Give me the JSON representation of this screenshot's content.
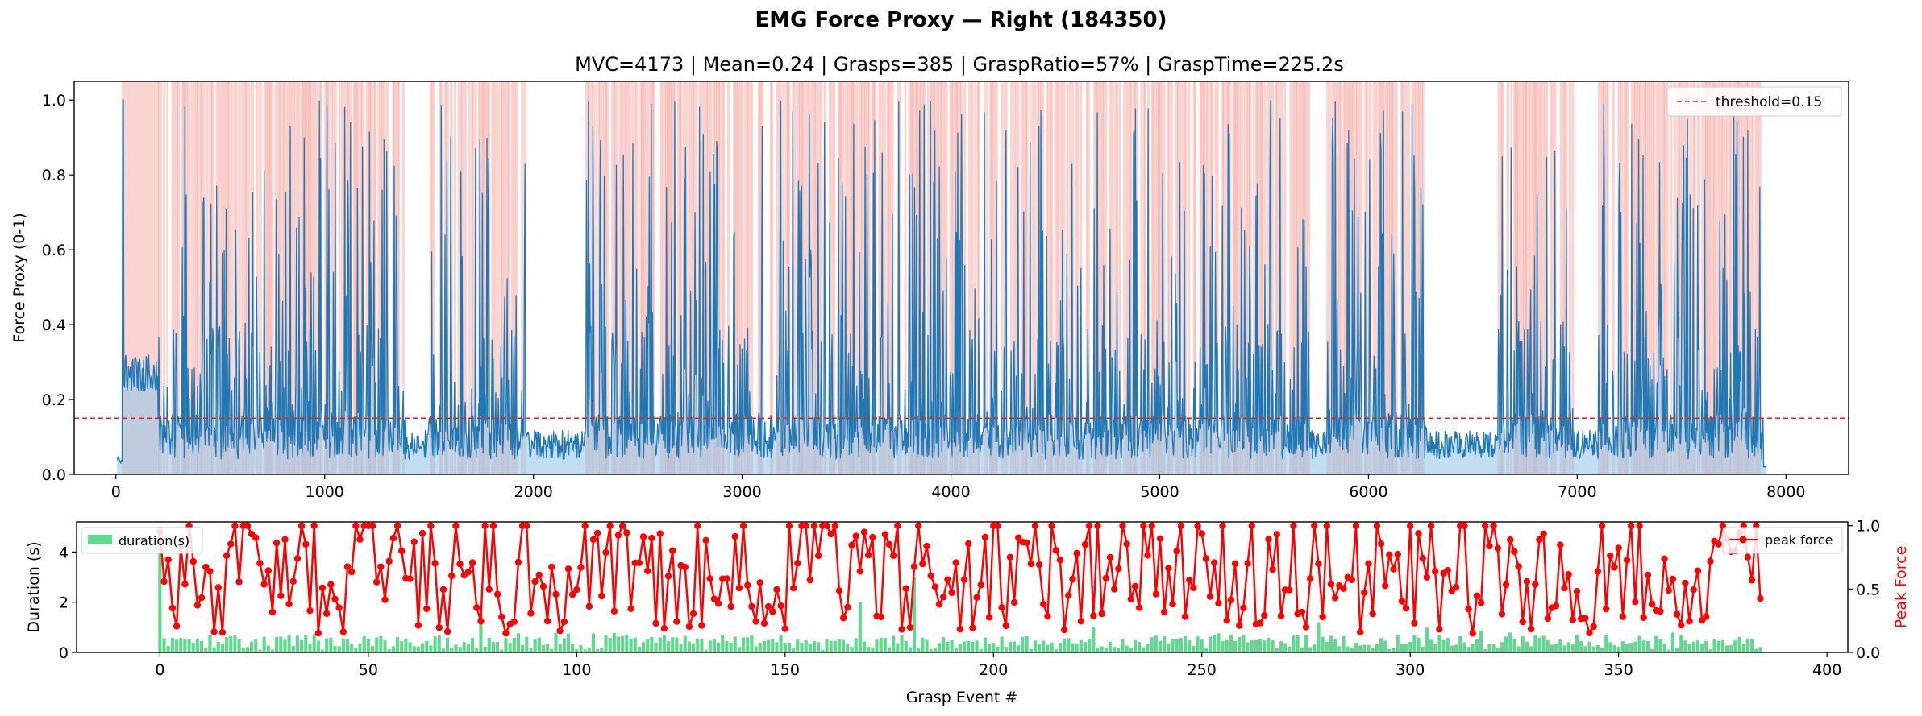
{
  "figure": {
    "suptitle": "EMG Force Proxy — Right (184350)"
  },
  "chart_data": [
    {
      "type": "line",
      "title": "MVC=4173 | Mean=0.24 | Grasps=385 | GraspRatio=57% | GraspTime=225.2s",
      "xlabel": "",
      "ylabel": "Force Proxy (0-1)",
      "xlim": [
        -200,
        8300
      ],
      "ylim": [
        0,
        1.05
      ],
      "xticks": [
        0,
        1000,
        2000,
        3000,
        4000,
        5000,
        6000,
        7000,
        8000
      ],
      "xtick_labels": [
        "0",
        "1000",
        "2000",
        "3000",
        "4000",
        "5000",
        "6000",
        "7000",
        "8000"
      ],
      "yticks": [
        0.0,
        0.2,
        0.4,
        0.6,
        0.8,
        1.0
      ],
      "ytick_labels": [
        "0.0",
        "0.2",
        "0.4",
        "0.6",
        "0.8",
        "1.0"
      ],
      "x_range_signal": [
        0,
        7900
      ],
      "series": [
        {
          "name": "",
          "color": "#1f77b4",
          "description": "force proxy signal, filled light blue to zero",
          "values_summary": "noisy bursts with frequent peaks 0.4–1.0; baseline 0.03–0.15; quiet segments near 1400–1500, 2000–2250, 5750, 6300–6600, 7000–7100"
        }
      ],
      "threshold": {
        "label": "threshold=0.15",
        "value": 0.15,
        "color": "#d62728",
        "style": "dashed"
      },
      "grasp_shading": {
        "color": "#f4a09a",
        "description": "vertical red shaded spans where force exceeds threshold"
      },
      "legend": {
        "placement": "upper right",
        "entries": [
          "threshold=0.15"
        ]
      }
    },
    {
      "type": "bar",
      "title": "",
      "xlabel": "Grasp Event #",
      "ylabel": "Duration (s)",
      "ylabel_right": "Peak Force",
      "xlim": [
        -20,
        405
      ],
      "ylim": [
        0,
        5.2
      ],
      "ylim_right": [
        0,
        1.03
      ],
      "xticks": [
        0,
        50,
        100,
        150,
        200,
        250,
        300,
        350,
        400
      ],
      "xtick_labels": [
        "0",
        "50",
        "100",
        "150",
        "200",
        "250",
        "300",
        "350",
        "400"
      ],
      "yticks": [
        0,
        2,
        4
      ],
      "ytick_labels": [
        "0",
        "2",
        "4"
      ],
      "yticks_right": [
        0.0,
        0.5,
        1.0
      ],
      "ytick_labels_right": [
        "0.0",
        "0.5",
        "1.0"
      ],
      "n_events": 385,
      "series": [
        {
          "name": "duration(s)",
          "color": "#5fd98e",
          "axis": "left",
          "values_summary": "mostly 0.1–0.8 s; a few longer events: #0≈5.0, #181≈3.0, #168≈2.0, #77≈1.6, #278≈1.2"
        },
        {
          "name": "peak force",
          "color": "#ff0000",
          "axis": "right",
          "marker": "circle",
          "values_summary": "zig-zag between ~0.15 and 1.0 across 385 events; many events saturate at 1.0"
        }
      ],
      "legend": [
        {
          "placement": "upper left",
          "entries": [
            "duration(s)"
          ]
        },
        {
          "placement": "upper right",
          "entries": [
            "peak force"
          ]
        }
      ]
    }
  ]
}
